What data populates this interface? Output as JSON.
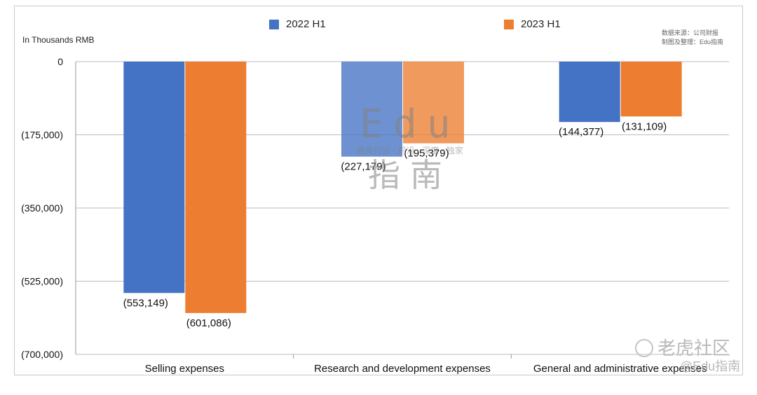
{
  "legend": [
    {
      "label": "2022 H1",
      "color": "#4472C4"
    },
    {
      "label": "2023 H1",
      "color": "#ED7D31"
    }
  ],
  "unit_label": "In Thousands RMB",
  "source_lines": [
    "数据来源：公司财报",
    "制图及整理：Edu指南"
  ],
  "watermark": {
    "center_big": "Edu",
    "center_small": "教育行业 · 前沿 · 深度 · 独家",
    "center_cn": "指南",
    "footer_main": "老虎社区",
    "footer_sub": "@Edu指南"
  },
  "chart_data": {
    "type": "bar",
    "categories": [
      "Selling expenses",
      "Research and development expenses",
      "General and administrative expenses"
    ],
    "series": [
      {
        "name": "2022 H1",
        "values": [
          -553149,
          -227179,
          -144377
        ],
        "labels": [
          "(553,149)",
          "(227,179)",
          "(144,377)"
        ]
      },
      {
        "name": "2023 H1",
        "values": [
          -601086,
          -195379,
          -131109
        ],
        "labels": [
          "(601,086)",
          "(195,379)",
          "(131,109)"
        ]
      }
    ],
    "ylim": [
      -700000,
      0
    ],
    "yticks": [
      0,
      -175000,
      -350000,
      -525000,
      -700000
    ],
    "ytick_labels": [
      "0",
      "(175,000)",
      "(350,000)",
      "(525,000)",
      "(700,000)"
    ],
    "ylabel": "In Thousands RMB",
    "grid": true,
    "legend_position": "top"
  }
}
